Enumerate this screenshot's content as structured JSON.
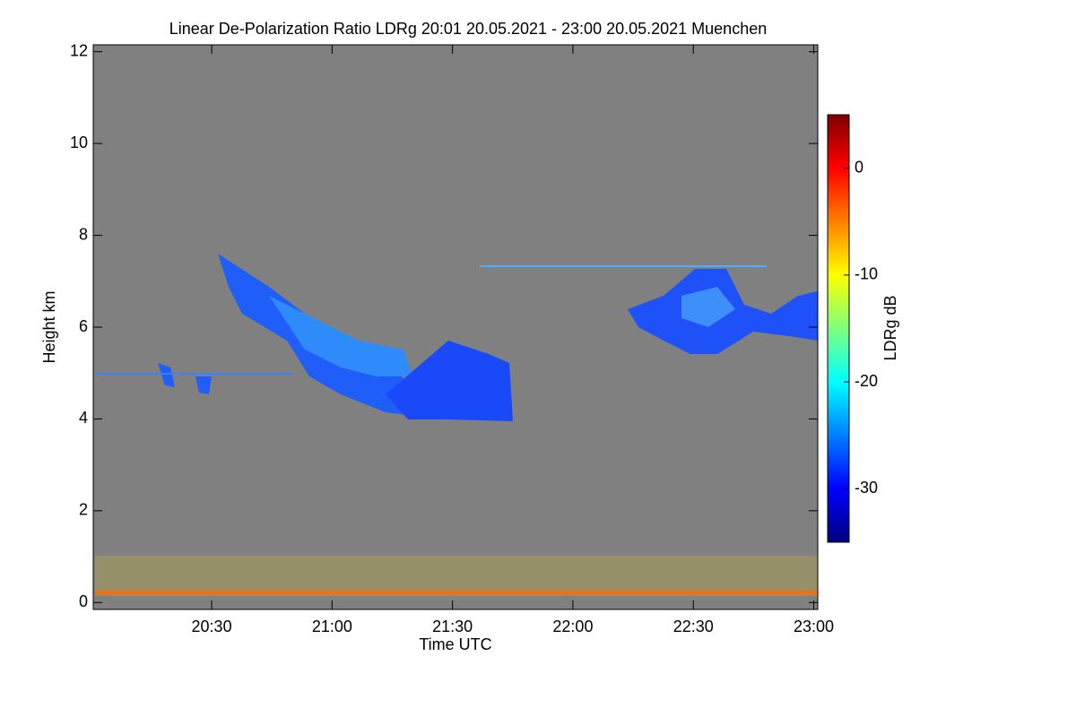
{
  "chart_data": {
    "type": "heatmap",
    "title": "Linear De-Polarization Ratio LDRg   20:01 20.05.2021 - 23:00 20.05.2021 Muenchen",
    "xlabel": "Time UTC",
    "ylabel": "Height km",
    "xlim": [
      1200.5,
      1381
    ],
    "xticks": [
      {
        "value": 1230,
        "label": "20:30"
      },
      {
        "value": 1260,
        "label": "21:00"
      },
      {
        "value": 1290,
        "label": "21:30"
      },
      {
        "value": 1320,
        "label": "22:00"
      },
      {
        "value": 1350,
        "label": "22:30"
      },
      {
        "value": 1380,
        "label": "23:00"
      }
    ],
    "ylim": [
      -0.15,
      12.15
    ],
    "yticks": [
      0,
      2,
      4,
      6,
      8,
      10,
      12
    ],
    "colorbar": {
      "label": "LDRg dB",
      "lim": [
        -35,
        5
      ],
      "ticks": [
        -30,
        -20,
        -10,
        0
      ],
      "colormap": [
        "#00007f",
        "#0000ff",
        "#007fff",
        "#00ffff",
        "#7fff7f",
        "#ffff00",
        "#ff7f00",
        "#ff0000",
        "#7f0000"
      ]
    },
    "background": "#808080"
  }
}
